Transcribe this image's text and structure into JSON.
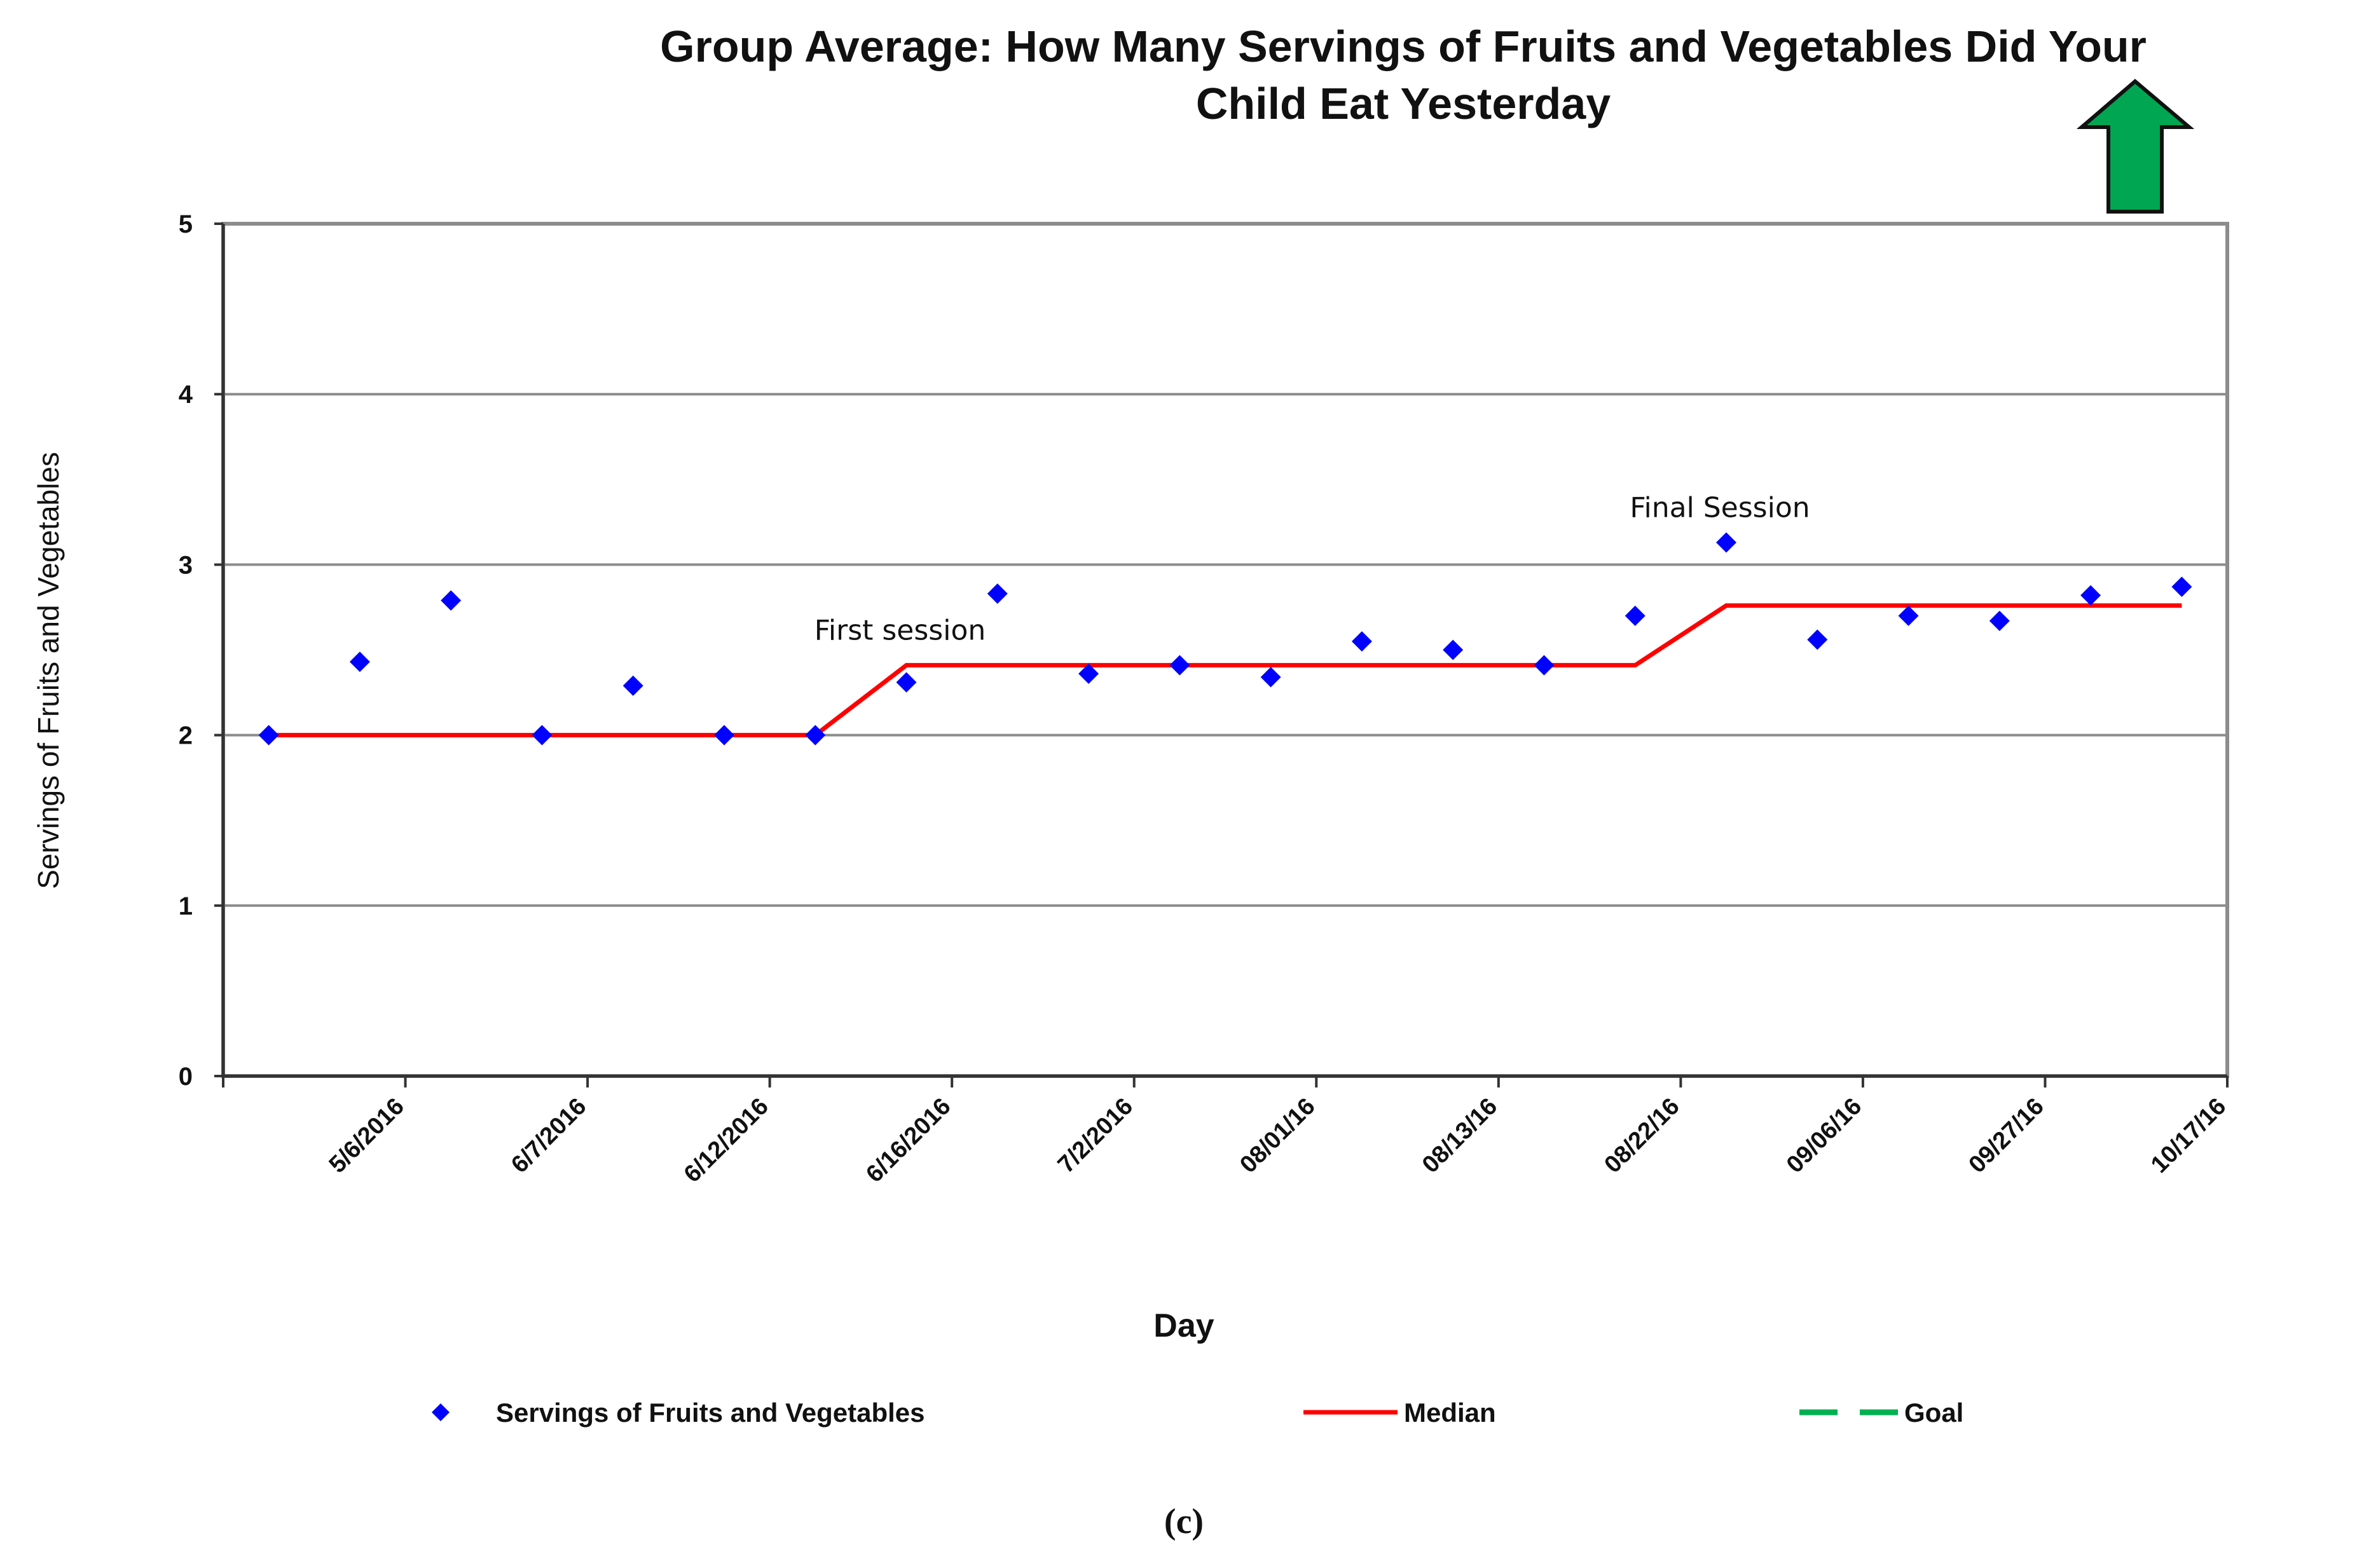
{
  "chart_data": {
    "type": "scatter",
    "title_line1": "Group Average: How Many Servings of Fruits and Vegetables Did Your",
    "title_line2": "Child Eat Yesterday",
    "xlabel": "Day",
    "ylabel": "Servings of Fruits and Vegetables",
    "ylim": [
      0,
      5
    ],
    "yticks": [
      "0",
      "1",
      "2",
      "3",
      "4",
      "5"
    ],
    "grid": true,
    "categories": [
      "5/6/2016",
      "6/7/2016",
      "6/12/2016",
      "6/16/2016",
      "7/2/2016",
      "08/01/16",
      "08/13/16",
      "08/22/16",
      "09/06/16",
      "09/27/16",
      "10/17/16"
    ],
    "n_points": 22,
    "series": [
      {
        "name": "Servings of Fruits and Vegetables",
        "marker": "diamond",
        "color": "#0000ff",
        "values": [
          2.0,
          2.43,
          2.79,
          2.0,
          2.29,
          2.0,
          2.0,
          2.31,
          2.83,
          2.36,
          2.41,
          2.34,
          2.55,
          2.5,
          2.41,
          2.7,
          3.13,
          2.56,
          2.7,
          2.67,
          2.82,
          2.87
        ]
      },
      {
        "name": "Median",
        "style": "solid",
        "color": "#ff0000",
        "points": [
          [
            0,
            2.0
          ],
          [
            6,
            2.0
          ],
          [
            7,
            2.41
          ],
          [
            15,
            2.41
          ],
          [
            16,
            2.76
          ],
          [
            21,
            2.76
          ]
        ]
      },
      {
        "name": "Goal",
        "style": "dashed",
        "color": "#00b050",
        "points": []
      }
    ],
    "annotations": [
      {
        "text": "First session",
        "x_index": 7,
        "y": 2.41
      },
      {
        "text": "Final Session",
        "x_index": 16,
        "y": 3.13
      }
    ],
    "goal_arrow": {
      "direction": "up",
      "color": "#00a651"
    },
    "legend_position": "bottom",
    "caption": "(c)"
  }
}
